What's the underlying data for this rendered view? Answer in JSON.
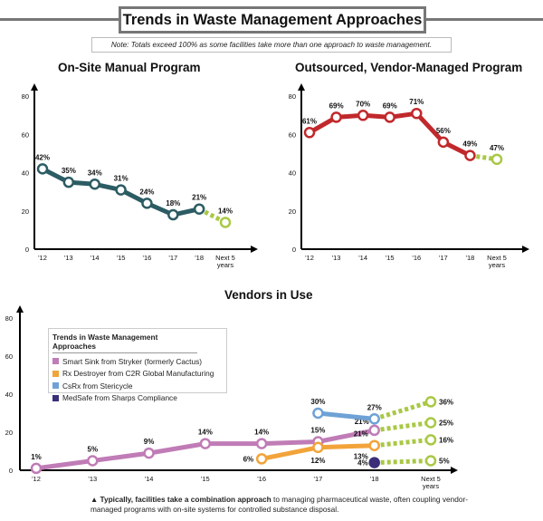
{
  "header": {
    "title": "Trends in Waste Management Approaches",
    "note": "Note: Totals exceed 100% as some facilities take more than one approach to waste management."
  },
  "colors": {
    "forecast": "#a9c844",
    "onsite": "#2c5c63",
    "outsourced": "#c1282c"
  },
  "chart_data": [
    {
      "type": "line",
      "title": "On-Site Manual Program",
      "categories": [
        "'12",
        "'13",
        "'14",
        "'15",
        "'16",
        "'17",
        "'18",
        "Next 5 years"
      ],
      "ylim": [
        0,
        80
      ],
      "yticks": [
        "0",
        "20",
        "40",
        "60",
        "80"
      ],
      "grid": false,
      "series": [
        {
          "values": [
            42,
            35,
            34,
            31,
            24,
            18,
            21,
            14
          ],
          "labels": [
            "42%",
            "35%",
            "34%",
            "31%",
            "24%",
            "18%",
            "21%",
            "14%"
          ],
          "color": "#2c5c63",
          "forecast_from_index": 6
        }
      ]
    },
    {
      "type": "line",
      "title": "Outsourced, Vendor-Managed Program",
      "categories": [
        "'12",
        "'13",
        "'14",
        "'15",
        "'16",
        "'17",
        "'18",
        "Next 5 years"
      ],
      "ylim": [
        0,
        80
      ],
      "yticks": [
        "0",
        "20",
        "40",
        "60",
        "80"
      ],
      "grid": false,
      "series": [
        {
          "values": [
            61,
            69,
            70,
            69,
            71,
            56,
            49,
            47
          ],
          "labels": [
            "61%",
            "69%",
            "70%",
            "69%",
            "71%",
            "56%",
            "49%",
            "47%"
          ],
          "color": "#c1282c",
          "forecast_from_index": 6
        }
      ]
    },
    {
      "type": "line",
      "title": "Vendors in Use",
      "categories": [
        "'12",
        "'13",
        "'14",
        "'15",
        "'16",
        "'17",
        "'18",
        "Next 5 years"
      ],
      "ylim": [
        0,
        80
      ],
      "yticks": [
        "0",
        "20",
        "40",
        "60",
        "80"
      ],
      "grid": false,
      "legend": {
        "title": "Trends in Waste Management Approaches",
        "placement": "top-left"
      },
      "series": [
        {
          "name": "Smart Sink from Stryker (formerly Cactus)",
          "color": "#c07cb6",
          "values": [
            1,
            5,
            9,
            14,
            14,
            15,
            21,
            25
          ],
          "labels": [
            "1%",
            "5%",
            "9%",
            "14%",
            "14%",
            "15%",
            "21%",
            "25%"
          ],
          "forecast_from_index": 6
        },
        {
          "name": "Rx Destroyer from C2R Global Manufacturing",
          "color": "#f2a33a",
          "values": [
            null,
            null,
            null,
            null,
            6,
            12,
            13,
            16
          ],
          "labels": [
            null,
            null,
            null,
            null,
            "6%",
            "12%",
            "13%",
            "16%"
          ],
          "forecast_from_index": 6
        },
        {
          "name": "CsRx from Stericycle",
          "color": "#6ea2d6",
          "values": [
            null,
            null,
            null,
            null,
            null,
            30,
            27,
            36
          ],
          "labels": [
            null,
            null,
            null,
            null,
            null,
            "30%",
            "27%",
            "36%"
          ],
          "forecast_from_index": 6
        },
        {
          "name": "MedSafe from Sharps Compliance",
          "color": "#3a2f78",
          "values": [
            null,
            null,
            null,
            null,
            null,
            null,
            4,
            5
          ],
          "labels": [
            null,
            null,
            null,
            null,
            null,
            null,
            "4%",
            "5%"
          ],
          "forecast_from_index": 6
        }
      ],
      "annotations": [
        {
          "category": "'18",
          "text": "21%",
          "near_series": "Rx Destroyer from C2R Global Manufacturing"
        }
      ]
    }
  ],
  "footnote": {
    "bold": "Typically, facilities take a combination approach",
    "rest": " to managing pharmaceutical waste, often coupling vendor-managed programs with on-site systems for controlled substance disposal."
  }
}
